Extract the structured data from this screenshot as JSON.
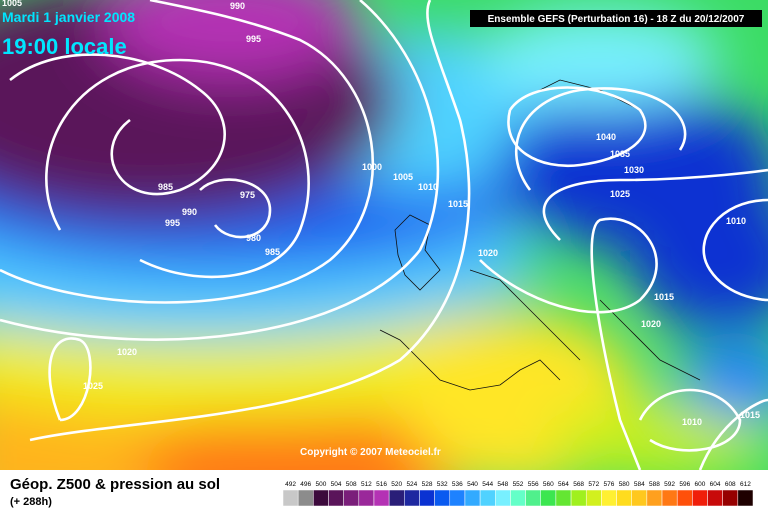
{
  "header": {
    "date": "Mardi 1 janvier 2008",
    "time": "19:00 locale",
    "model": "Ensemble GEFS (Perturbation 16)  -  18 Z du 20/12/2007"
  },
  "isobar_labels": [
    1005,
    990,
    995,
    985,
    990,
    995,
    975,
    980,
    985,
    1000,
    1005,
    1010,
    1015,
    1020,
    1040,
    1035,
    1030,
    1025,
    1010,
    1015,
    1020,
    1020,
    1025,
    1010,
    1015
  ],
  "copyright": "Copyright © 2007 Meteociel.fr",
  "footer": {
    "title": "Géop. Z500 & pression au sol",
    "lead": "(+ 288h)"
  },
  "colorbar": {
    "labels": [
      492,
      496,
      500,
      504,
      508,
      512,
      516,
      520,
      524,
      528,
      532,
      536,
      540,
      544,
      548,
      552,
      556,
      560,
      564,
      568,
      572,
      576,
      580,
      584,
      588,
      592,
      596,
      600,
      604,
      608,
      612
    ],
    "colors": [
      "#c8c8c8",
      "#8c8c8c",
      "#3c0a3c",
      "#5a145a",
      "#7a1e7a",
      "#9a289a",
      "#b432b4",
      "#2a1e78",
      "#1e28a0",
      "#0a32d2",
      "#0a5af0",
      "#1e82ff",
      "#32aaff",
      "#50d2ff",
      "#78f0ff",
      "#64ffc8",
      "#50f08c",
      "#3ce650",
      "#64e632",
      "#a0f01e",
      "#d2f01e",
      "#fff032",
      "#ffdc1e",
      "#ffc81e",
      "#ffa01e",
      "#ff7814",
      "#ff500a",
      "#f01e0a",
      "#c80a0a",
      "#960000",
      "#1e0000"
    ]
  }
}
